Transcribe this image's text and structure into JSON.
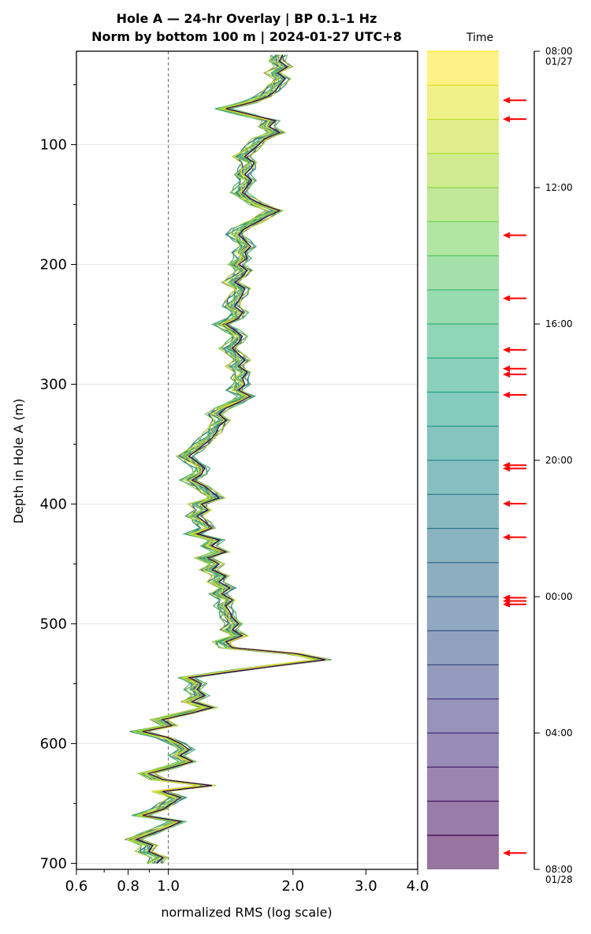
{
  "chart_data": {
    "type": "line",
    "title_line1": "Hole A — 24-hr Overlay  |  BP 0.1–1 Hz",
    "title_line2": "Norm by bottom 100 m  |  2024-01-27 UTC+8",
    "xlabel": "normalized RMS  (log scale)",
    "ylabel": "Depth in Hole A (m)",
    "x_scale": "log",
    "xlim": [
      0.6,
      4.0
    ],
    "ylim": [
      705,
      22
    ],
    "x_ticks": [
      "0.6",
      "0.8",
      "1.0",
      "2.0",
      "3.0",
      "4.0"
    ],
    "y_ticks": [
      "100",
      "200",
      "300",
      "400",
      "500",
      "600",
      "700"
    ],
    "reference_line_x": 1.0,
    "grid": "horizontal",
    "series_count": 24,
    "colormap": [
      "#440154",
      "#482878",
      "#3e4a89",
      "#31688e",
      "#26828e",
      "#1f9e89",
      "#35b779",
      "#6ece58",
      "#b5de2b",
      "#fde725"
    ],
    "profile": [
      [
        25,
        1.85
      ],
      [
        30,
        1.82
      ],
      [
        35,
        1.9
      ],
      [
        40,
        1.8
      ],
      [
        45,
        1.88
      ],
      [
        50,
        1.82
      ],
      [
        55,
        1.78
      ],
      [
        60,
        1.7
      ],
      [
        65,
        1.55
      ],
      [
        70,
        1.35
      ],
      [
        75,
        1.55
      ],
      [
        80,
        1.78
      ],
      [
        85,
        1.72
      ],
      [
        90,
        1.82
      ],
      [
        95,
        1.68
      ],
      [
        100,
        1.62
      ],
      [
        105,
        1.56
      ],
      [
        110,
        1.5
      ],
      [
        115,
        1.58
      ],
      [
        120,
        1.55
      ],
      [
        125,
        1.5
      ],
      [
        130,
        1.56
      ],
      [
        135,
        1.52
      ],
      [
        140,
        1.48
      ],
      [
        145,
        1.55
      ],
      [
        150,
        1.65
      ],
      [
        155,
        1.82
      ],
      [
        160,
        1.7
      ],
      [
        165,
        1.6
      ],
      [
        170,
        1.5
      ],
      [
        175,
        1.45
      ],
      [
        180,
        1.5
      ],
      [
        185,
        1.55
      ],
      [
        190,
        1.5
      ],
      [
        195,
        1.52
      ],
      [
        200,
        1.45
      ],
      [
        205,
        1.52
      ],
      [
        210,
        1.48
      ],
      [
        215,
        1.42
      ],
      [
        220,
        1.5
      ],
      [
        225,
        1.48
      ],
      [
        230,
        1.45
      ],
      [
        235,
        1.42
      ],
      [
        240,
        1.48
      ],
      [
        245,
        1.45
      ],
      [
        250,
        1.35
      ],
      [
        255,
        1.42
      ],
      [
        260,
        1.48
      ],
      [
        265,
        1.45
      ],
      [
        270,
        1.4
      ],
      [
        275,
        1.45
      ],
      [
        280,
        1.5
      ],
      [
        285,
        1.45
      ],
      [
        290,
        1.52
      ],
      [
        295,
        1.48
      ],
      [
        300,
        1.5
      ],
      [
        305,
        1.45
      ],
      [
        310,
        1.55
      ],
      [
        315,
        1.45
      ],
      [
        320,
        1.35
      ],
      [
        325,
        1.3
      ],
      [
        330,
        1.35
      ],
      [
        335,
        1.3
      ],
      [
        340,
        1.28
      ],
      [
        345,
        1.25
      ],
      [
        350,
        1.2
      ],
      [
        355,
        1.15
      ],
      [
        360,
        1.1
      ],
      [
        365,
        1.15
      ],
      [
        370,
        1.2
      ],
      [
        375,
        1.18
      ],
      [
        380,
        1.12
      ],
      [
        385,
        1.2
      ],
      [
        390,
        1.25
      ],
      [
        395,
        1.3
      ],
      [
        400,
        1.18
      ],
      [
        405,
        1.22
      ],
      [
        410,
        1.15
      ],
      [
        415,
        1.2
      ],
      [
        420,
        1.25
      ],
      [
        425,
        1.15
      ],
      [
        430,
        1.3
      ],
      [
        435,
        1.25
      ],
      [
        440,
        1.35
      ],
      [
        445,
        1.22
      ],
      [
        450,
        1.3
      ],
      [
        455,
        1.25
      ],
      [
        460,
        1.35
      ],
      [
        465,
        1.3
      ],
      [
        470,
        1.38
      ],
      [
        475,
        1.32
      ],
      [
        480,
        1.4
      ],
      [
        485,
        1.35
      ],
      [
        490,
        1.38
      ],
      [
        495,
        1.4
      ],
      [
        500,
        1.45
      ],
      [
        505,
        1.4
      ],
      [
        510,
        1.48
      ],
      [
        515,
        1.35
      ],
      [
        520,
        1.4
      ],
      [
        525,
        2.0
      ],
      [
        530,
        2.35
      ],
      [
        535,
        1.8
      ],
      [
        540,
        1.4
      ],
      [
        545,
        1.1
      ],
      [
        550,
        1.18
      ],
      [
        555,
        1.15
      ],
      [
        560,
        1.2
      ],
      [
        565,
        1.12
      ],
      [
        570,
        1.25
      ],
      [
        575,
        1.1
      ],
      [
        580,
        0.95
      ],
      [
        585,
        1.0
      ],
      [
        590,
        0.85
      ],
      [
        595,
        0.98
      ],
      [
        600,
        1.05
      ],
      [
        605,
        1.1
      ],
      [
        610,
        1.05
      ],
      [
        615,
        1.12
      ],
      [
        620,
        1.0
      ],
      [
        625,
        0.88
      ],
      [
        630,
        0.95
      ],
      [
        635,
        1.25
      ],
      [
        640,
        0.95
      ],
      [
        645,
        1.05
      ],
      [
        650,
        1.0
      ],
      [
        655,
        0.95
      ],
      [
        660,
        0.85
      ],
      [
        665,
        1.05
      ],
      [
        670,
        0.98
      ],
      [
        675,
        0.9
      ],
      [
        680,
        0.82
      ],
      [
        685,
        0.9
      ],
      [
        690,
        0.88
      ],
      [
        695,
        0.95
      ],
      [
        700,
        0.92
      ]
    ],
    "time_colorbar": {
      "title": "Time",
      "labels": [
        "08:00\n01/27",
        "12:00",
        "16:00",
        "20:00",
        "00:00",
        "04:00",
        "08:00\n01/28"
      ],
      "band_count": 24,
      "marker_color": "#ff0000",
      "marker_fractions": [
        0.06,
        0.083,
        0.225,
        0.302,
        0.365,
        0.388,
        0.395,
        0.42,
        0.506,
        0.51,
        0.553,
        0.594,
        0.668,
        0.672,
        0.676,
        0.98
      ]
    }
  }
}
